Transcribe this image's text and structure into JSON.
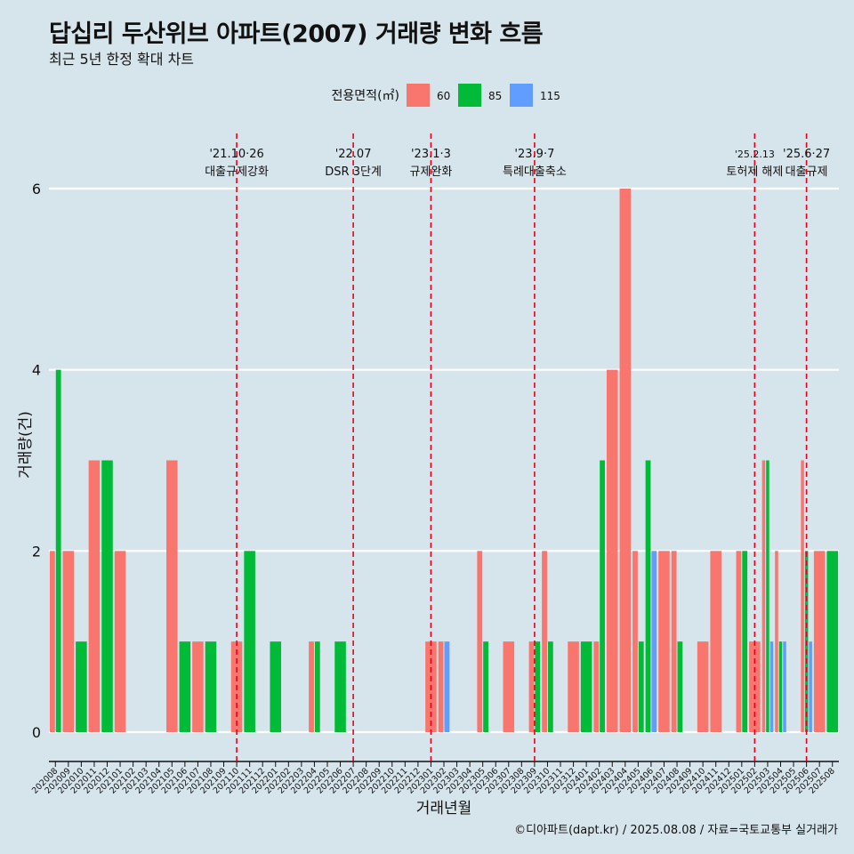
{
  "title": "답십리 두산위브 아파트(2007) 거래량 변화 흐름",
  "subtitle": "최근 5년 한정 확대 차트",
  "footer": "©디아파트(dapt.kr) / 2025.08.08 / 자료=국토교통부 실거래가",
  "colors": {
    "background": "#d6e4ec",
    "series_60": "#f8766d",
    "series_85": "#00ba38",
    "series_115": "#619cff",
    "reference_line": "#e8001c",
    "grid": "#ffffff"
  },
  "chart_data": {
    "type": "bar",
    "xlabel": "거래년월",
    "ylabel": "거래량(건)",
    "ylim": [
      0,
      6
    ],
    "yticks": [
      0,
      2,
      4,
      6
    ],
    "grid": "horizontal",
    "legend": {
      "title": "전용면적(㎡)",
      "position": "top-center"
    },
    "categories": [
      "202008",
      "202009",
      "202010",
      "202011",
      "202012",
      "202101",
      "202102",
      "202103",
      "202104",
      "202105",
      "202106",
      "202107",
      "202108",
      "202109",
      "202110",
      "202111",
      "202112",
      "202201",
      "202202",
      "202203",
      "202204",
      "202205",
      "202206",
      "202207",
      "202208",
      "202209",
      "202210",
      "202211",
      "202212",
      "202301",
      "202302",
      "202303",
      "202304",
      "202305",
      "202306",
      "202307",
      "202308",
      "202309",
      "202310",
      "202311",
      "202312",
      "202401",
      "202402",
      "202403",
      "202404",
      "202405",
      "202406",
      "202407",
      "202408",
      "202409",
      "202410",
      "202411",
      "202412",
      "202501",
      "202502",
      "202503",
      "202504",
      "202505",
      "202506",
      "202507",
      "202508"
    ],
    "series": [
      {
        "name": "60",
        "values": [
          2,
          2,
          0,
          3,
          0,
          2,
          0,
          0,
          0,
          3,
          0,
          1,
          0,
          0,
          1,
          0,
          0,
          0,
          0,
          0,
          1,
          0,
          0,
          0,
          0,
          0,
          0,
          0,
          0,
          1,
          1,
          0,
          0,
          2,
          0,
          1,
          0,
          1,
          2,
          0,
          1,
          0,
          1,
          4,
          6,
          2,
          0,
          2,
          2,
          0,
          1,
          2,
          0,
          2,
          1,
          3,
          2,
          0,
          3,
          2,
          0
        ]
      },
      {
        "name": "85",
        "values": [
          4,
          0,
          1,
          0,
          3,
          0,
          0,
          0,
          0,
          0,
          1,
          0,
          1,
          0,
          0,
          2,
          0,
          1,
          0,
          0,
          1,
          0,
          1,
          0,
          0,
          0,
          0,
          0,
          0,
          0,
          0,
          0,
          0,
          1,
          0,
          0,
          0,
          1,
          1,
          0,
          0,
          1,
          3,
          0,
          0,
          1,
          3,
          0,
          1,
          0,
          0,
          0,
          0,
          2,
          0,
          3,
          1,
          0,
          2,
          0,
          2
        ]
      },
      {
        "name": "115",
        "values": [
          0,
          0,
          0,
          0,
          0,
          0,
          0,
          0,
          0,
          0,
          0,
          0,
          0,
          0,
          0,
          0,
          0,
          0,
          0,
          0,
          0,
          0,
          0,
          0,
          0,
          0,
          0,
          0,
          0,
          0,
          1,
          0,
          0,
          0,
          0,
          0,
          0,
          0,
          0,
          0,
          0,
          0,
          0,
          0,
          0,
          0,
          2,
          0,
          0,
          0,
          0,
          0,
          0,
          0,
          0,
          1,
          1,
          0,
          1,
          0,
          0
        ]
      }
    ],
    "annotations": [
      {
        "x": "202110",
        "line1": "'21.10·26",
        "line2": "대출규제강화"
      },
      {
        "x": "202207",
        "line1": "'22.07",
        "line2": "DSR 3단계"
      },
      {
        "x": "202301",
        "line1": "'23.1·3",
        "line2": "규제완화"
      },
      {
        "x": "202309",
        "line1": "'23.9·7",
        "line2": "특례대출축소"
      },
      {
        "x": "202502",
        "line1": "'25.2.13",
        "line2": "토허제 해제"
      },
      {
        "x": "202506",
        "line1": "'25.6·27",
        "line2": "대출규제"
      }
    ]
  }
}
